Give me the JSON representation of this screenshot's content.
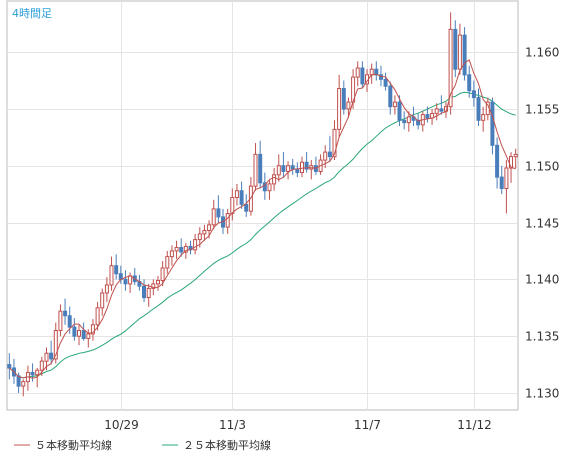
{
  "chart_data": {
    "type": "candlestick",
    "period_label": "4時間足",
    "ylim": [
      1.1285,
      1.1645
    ],
    "y_ticks": [
      "1.130",
      "1.135",
      "1.140",
      "1.145",
      "1.150",
      "1.155",
      "1.160"
    ],
    "x_ticks": [
      {
        "label": "10/29",
        "index": 24
      },
      {
        "label": "11/3",
        "index": 48
      },
      {
        "label": "11/7",
        "index": 77
      },
      {
        "label": "11/12",
        "index": 100
      }
    ],
    "grid": true,
    "colors": {
      "up": "#c0504d",
      "down": "#4a7ebb",
      "ma5": "#c0504d",
      "ma25": "#2aa876",
      "grid": "#e4e4e4",
      "border": "#bbbbbb",
      "period_label": "#2e9fd8"
    },
    "legend": [
      {
        "label": "５本移動平均線",
        "color": "#c0504d"
      },
      {
        "label": "２５本移動平均線",
        "color": "#2aa876"
      }
    ],
    "ohlc": [
      [
        1.1325,
        1.1335,
        1.1312,
        1.1322
      ],
      [
        1.1322,
        1.133,
        1.1308,
        1.1315
      ],
      [
        1.1315,
        1.1318,
        1.13,
        1.1306
      ],
      [
        1.1306,
        1.1312,
        1.1297,
        1.131
      ],
      [
        1.131,
        1.1324,
        1.1302,
        1.1318
      ],
      [
        1.1318,
        1.1326,
        1.131,
        1.1316
      ],
      [
        1.1316,
        1.1322,
        1.1305,
        1.132
      ],
      [
        1.132,
        1.1332,
        1.1315,
        1.1328
      ],
      [
        1.1328,
        1.134,
        1.132,
        1.1335
      ],
      [
        1.1335,
        1.1346,
        1.1325,
        1.133
      ],
      [
        1.133,
        1.1362,
        1.1326,
        1.1355
      ],
      [
        1.1355,
        1.1378,
        1.135,
        1.1372
      ],
      [
        1.1372,
        1.1383,
        1.136,
        1.1368
      ],
      [
        1.1368,
        1.1376,
        1.1352,
        1.1358
      ],
      [
        1.1358,
        1.1366,
        1.1346,
        1.135
      ],
      [
        1.135,
        1.136,
        1.1342,
        1.1355
      ],
      [
        1.1355,
        1.1362,
        1.1346,
        1.1348
      ],
      [
        1.1348,
        1.1356,
        1.134,
        1.1352
      ],
      [
        1.1352,
        1.1365,
        1.1346,
        1.136
      ],
      [
        1.136,
        1.138,
        1.1355,
        1.1375
      ],
      [
        1.1375,
        1.1392,
        1.1368,
        1.1388
      ],
      [
        1.1388,
        1.1402,
        1.138,
        1.1395
      ],
      [
        1.1395,
        1.142,
        1.139,
        1.1412
      ],
      [
        1.1412,
        1.1422,
        1.14,
        1.1405
      ],
      [
        1.1405,
        1.1412,
        1.1396,
        1.14
      ],
      [
        1.14,
        1.1408,
        1.139,
        1.1396
      ],
      [
        1.1396,
        1.1406,
        1.1388,
        1.1403
      ],
      [
        1.1403,
        1.141,
        1.1395,
        1.1398
      ],
      [
        1.1398,
        1.1404,
        1.139,
        1.1394
      ],
      [
        1.1394,
        1.14,
        1.138,
        1.1384
      ],
      [
        1.1384,
        1.1396,
        1.1376,
        1.1392
      ],
      [
        1.1392,
        1.14,
        1.1386,
        1.1396
      ],
      [
        1.1396,
        1.1403,
        1.139,
        1.1399
      ],
      [
        1.1399,
        1.1416,
        1.1394,
        1.141
      ],
      [
        1.141,
        1.1425,
        1.1405,
        1.142
      ],
      [
        1.142,
        1.143,
        1.1412,
        1.1425
      ],
      [
        1.1425,
        1.1434,
        1.1418,
        1.1428
      ],
      [
        1.1428,
        1.1436,
        1.142,
        1.1424
      ],
      [
        1.1424,
        1.1432,
        1.1418,
        1.1429
      ],
      [
        1.1429,
        1.1434,
        1.1422,
        1.1426
      ],
      [
        1.1426,
        1.144,
        1.1422,
        1.1435
      ],
      [
        1.1435,
        1.1446,
        1.1428,
        1.144
      ],
      [
        1.144,
        1.1448,
        1.1434,
        1.1443
      ],
      [
        1.1443,
        1.1452,
        1.1436,
        1.1448
      ],
      [
        1.1448,
        1.147,
        1.1444,
        1.1462
      ],
      [
        1.1462,
        1.1474,
        1.145,
        1.1455
      ],
      [
        1.1455,
        1.1462,
        1.144,
        1.1446
      ],
      [
        1.1446,
        1.1462,
        1.144,
        1.1458
      ],
      [
        1.1458,
        1.148,
        1.1452,
        1.1472
      ],
      [
        1.1472,
        1.1484,
        1.1465,
        1.1478
      ],
      [
        1.1478,
        1.1486,
        1.1462,
        1.1466
      ],
      [
        1.1466,
        1.1475,
        1.1455,
        1.146
      ],
      [
        1.146,
        1.149,
        1.1456,
        1.1482
      ],
      [
        1.1482,
        1.152,
        1.1478,
        1.151
      ],
      [
        1.151,
        1.1522,
        1.148,
        1.1485
      ],
      [
        1.1485,
        1.1494,
        1.147,
        1.1478
      ],
      [
        1.1478,
        1.1488,
        1.147,
        1.1484
      ],
      [
        1.1484,
        1.1498,
        1.1478,
        1.1492
      ],
      [
        1.1492,
        1.151,
        1.1486,
        1.15
      ],
      [
        1.15,
        1.1512,
        1.149,
        1.1495
      ],
      [
        1.1495,
        1.1504,
        1.1488,
        1.15
      ],
      [
        1.15,
        1.1506,
        1.1492,
        1.1497
      ],
      [
        1.1497,
        1.1503,
        1.149,
        1.1494
      ],
      [
        1.1494,
        1.1508,
        1.149,
        1.1503
      ],
      [
        1.1503,
        1.1512,
        1.1494,
        1.1497
      ],
      [
        1.1497,
        1.1505,
        1.1488,
        1.15
      ],
      [
        1.15,
        1.1508,
        1.1492,
        1.1495
      ],
      [
        1.1495,
        1.151,
        1.1492,
        1.1505
      ],
      [
        1.1505,
        1.1518,
        1.1498,
        1.1512
      ],
      [
        1.1512,
        1.1526,
        1.1504,
        1.1508
      ],
      [
        1.1508,
        1.154,
        1.1505,
        1.1532
      ],
      [
        1.1532,
        1.158,
        1.1525,
        1.1568
      ],
      [
        1.1568,
        1.1575,
        1.1545,
        1.155
      ],
      [
        1.155,
        1.156,
        1.1542,
        1.1556
      ],
      [
        1.1556,
        1.1585,
        1.155,
        1.1578
      ],
      [
        1.1578,
        1.1592,
        1.157,
        1.1586
      ],
      [
        1.1586,
        1.1592,
        1.1568,
        1.1572
      ],
      [
        1.1572,
        1.1585,
        1.1565,
        1.158
      ],
      [
        1.158,
        1.159,
        1.1572,
        1.1585
      ],
      [
        1.1585,
        1.1592,
        1.1575,
        1.158
      ],
      [
        1.158,
        1.1588,
        1.157,
        1.1576
      ],
      [
        1.1576,
        1.1582,
        1.1566,
        1.157
      ],
      [
        1.157,
        1.1574,
        1.1545,
        1.1552
      ],
      [
        1.1552,
        1.1562,
        1.1545,
        1.1556
      ],
      [
        1.1556,
        1.1562,
        1.1535,
        1.154
      ],
      [
        1.154,
        1.1548,
        1.1532,
        1.1538
      ],
      [
        1.1538,
        1.1548,
        1.153,
        1.1543
      ],
      [
        1.1543,
        1.1552,
        1.1535,
        1.154
      ],
      [
        1.154,
        1.1546,
        1.1532,
        1.1536
      ],
      [
        1.1536,
        1.1548,
        1.153,
        1.1545
      ],
      [
        1.1545,
        1.1552,
        1.1538,
        1.1542
      ],
      [
        1.1542,
        1.155,
        1.1536,
        1.1546
      ],
      [
        1.1546,
        1.1555,
        1.154,
        1.155
      ],
      [
        1.155,
        1.1562,
        1.1545,
        1.1548
      ],
      [
        1.1548,
        1.1556,
        1.1542,
        1.1552
      ],
      [
        1.1552,
        1.1635,
        1.1545,
        1.162
      ],
      [
        1.162,
        1.1628,
        1.1578,
        1.1585
      ],
      [
        1.1585,
        1.1625,
        1.158,
        1.1615
      ],
      [
        1.1615,
        1.1622,
        1.1575,
        1.158
      ],
      [
        1.158,
        1.1588,
        1.156,
        1.1566
      ],
      [
        1.1566,
        1.1575,
        1.1552,
        1.156
      ],
      [
        1.156,
        1.1568,
        1.1535,
        1.154
      ],
      [
        1.154,
        1.1552,
        1.153,
        1.1545
      ],
      [
        1.1545,
        1.156,
        1.154,
        1.1556
      ],
      [
        1.1556,
        1.156,
        1.151,
        1.1518
      ],
      [
        1.1518,
        1.1525,
        1.148,
        1.149
      ],
      [
        1.149,
        1.15,
        1.1475,
        1.148
      ],
      [
        1.148,
        1.1505,
        1.1458,
        1.1498
      ],
      [
        1.1498,
        1.1512,
        1.1485,
        1.1508
      ],
      [
        1.1508,
        1.1515,
        1.1498,
        1.151
      ]
    ]
  }
}
